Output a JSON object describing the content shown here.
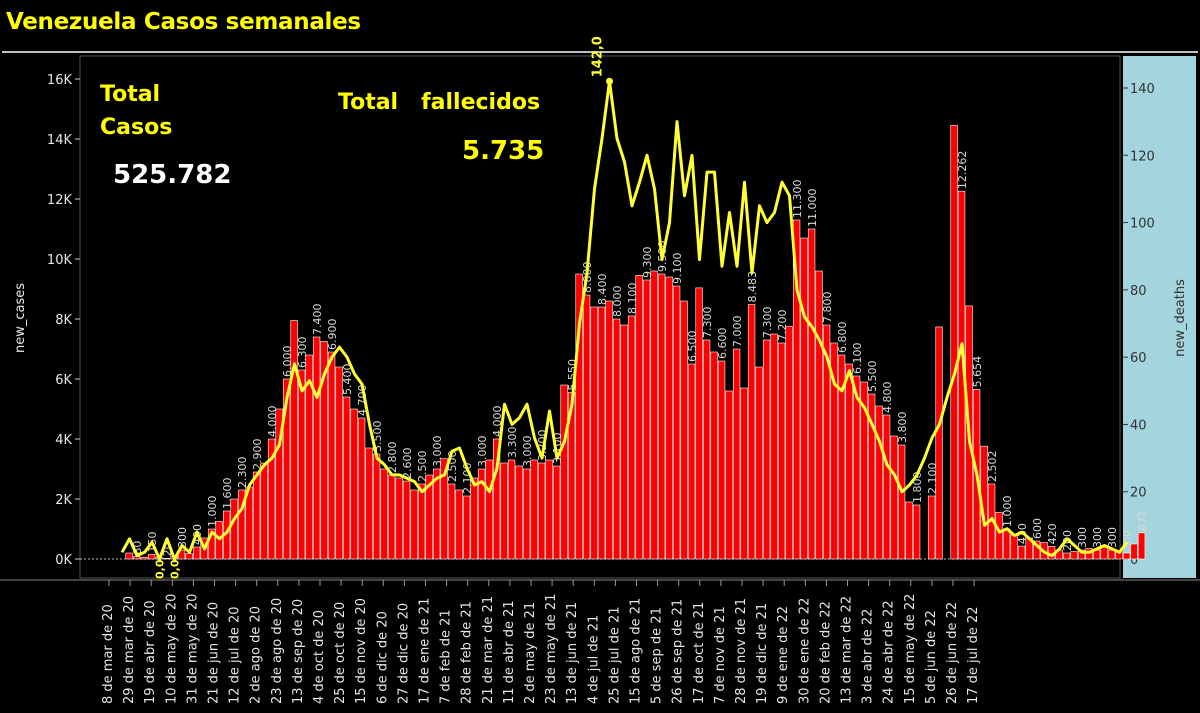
{
  "title": "Venezuela Casos semanales",
  "annotations": {
    "total_casos_line1": "Total",
    "total_casos_line2": "Casos",
    "total_casos_value": "525.782",
    "total_fallecidos_label": "Total   fallecidos",
    "total_fallecidos_value": "5.735"
  },
  "colors": {
    "bars": "#ff0000",
    "deaths_line": "#ffff33",
    "right_axis_bg": "#a4d4de",
    "background": "#000000",
    "title": "#ffff00"
  },
  "chart_data": {
    "type": "bar+line",
    "xlabel": "",
    "ylabel_left": "new_cases",
    "ylabel_right": "new_deaths",
    "ylim_left": [
      0,
      16500
    ],
    "ylim_right": [
      0,
      146
    ],
    "yticks_left": [
      0,
      2000,
      4000,
      6000,
      8000,
      10000,
      12000,
      14000,
      16000
    ],
    "yticks_left_labels": [
      "0K",
      "2K",
      "4K",
      "6K",
      "8K",
      "10K",
      "12K",
      "14K",
      "16K"
    ],
    "yticks_right": [
      0,
      20,
      40,
      60,
      80,
      100,
      120,
      140
    ],
    "x_tick_labels": [
      "8 de mar de 20",
      "29 de mar de 20",
      "19 de abr de 20",
      "10 de may de 20",
      "31 de may de 20",
      "21 de jun de 20",
      "12 de jul de 20",
      "2 de ago de 20",
      "23 de ago de 20",
      "13 de sep de 20",
      "4 de oct de 20",
      "25 de oct de 20",
      "15 de nov de 20",
      "6 de dic de 20",
      "27 de dic de 20",
      "17 de ene de 21",
      "7 de feb de 21",
      "28 de feb de 21",
      "21 de mar de 21",
      "11 de abr de 21",
      "2 de may de 21",
      "23 de may de 21",
      "13 de jun de 21",
      "4 de jul de 21",
      "25 de jul de 21",
      "15 de ago de 21",
      "5 de sep de 21",
      "26 de sep de 21",
      "17 de oct de 21",
      "7 de nov de 21",
      "28 de nov de 21",
      "19 de dic de 21",
      "9 de ene de 22",
      "30 de ene de 22",
      "20 de feb de 22",
      "13 de mar de 22",
      "3 de abr de 22",
      "24 de abr de 22",
      "15 de may de 22",
      "5 de jun de 22",
      "26 de jun de 22",
      "17 de jul de 22"
    ],
    "new_cases": [
      0,
      200,
      80,
      60,
      150,
      50,
      20,
      80,
      300,
      180,
      400,
      700,
      1000,
      1250,
      1600,
      2000,
      2300,
      2400,
      2900,
      3200,
      4000,
      5000,
      6000,
      7950,
      6300,
      6800,
      7400,
      7250,
      6900,
      6400,
      5400,
      5000,
      4700,
      3700,
      3500,
      3000,
      2800,
      2700,
      2600,
      2300,
      2500,
      2800,
      3000,
      3344,
      2500,
      2300,
      2100,
      2700,
      3000,
      3300,
      4000,
      3200,
      3300,
      3100,
      3000,
      3300,
      3200,
      3300,
      3100,
      5800,
      5550,
      9500,
      8800,
      8400,
      8400,
      8600,
      8000,
      7800,
      8100,
      9455,
      9300,
      9600,
      9500,
      9400,
      9100,
      8600,
      6500,
      9037,
      7300,
      6900,
      6600,
      5600,
      7000,
      5700,
      8483,
      6400,
      7300,
      7500,
      7200,
      7750,
      11300,
      10700,
      11000,
      9600,
      7800,
      7200,
      6800,
      6500,
      6100,
      5900,
      5500,
      5100,
      4800,
      4100,
      3800,
      1900,
      1800,
      0,
      2100,
      7735,
      0,
      14455,
      12262,
      8436,
      5654,
      3762,
      2502,
      1553,
      1000,
      800,
      430,
      700,
      600,
      550,
      420,
      300,
      200,
      250,
      300,
      350,
      300,
      400,
      300,
      250,
      200,
      500,
      871
    ],
    "new_deaths": [
      2,
      6,
      1,
      2,
      5,
      0,
      6,
      0,
      4,
      2,
      8,
      3,
      8,
      6,
      8,
      12,
      15,
      22,
      25,
      28,
      30,
      34,
      48,
      58,
      50,
      53,
      48,
      55,
      60,
      63,
      60,
      55,
      52,
      40,
      30,
      28,
      25,
      25,
      24,
      23,
      20,
      22,
      24,
      25,
      32,
      33,
      27,
      22,
      23,
      20,
      27,
      46,
      40,
      42,
      46,
      36,
      30,
      44,
      30,
      35,
      46,
      70,
      85,
      110,
      125,
      142,
      125,
      118,
      105,
      112,
      120,
      110,
      89,
      100,
      130,
      108,
      120,
      89,
      115,
      115,
      87,
      103,
      87,
      112,
      85,
      105,
      100,
      103,
      112,
      108,
      80,
      72,
      69,
      65,
      60,
      52,
      50,
      56,
      48,
      45,
      40,
      35,
      28,
      25,
      20,
      22,
      25,
      30,
      36,
      40,
      48,
      55,
      64,
      35,
      25,
      10,
      12,
      8,
      9,
      7,
      8,
      6,
      4,
      2,
      1,
      3,
      6,
      4,
      2,
      2,
      3,
      4,
      3,
      2,
      5
    ]
  }
}
